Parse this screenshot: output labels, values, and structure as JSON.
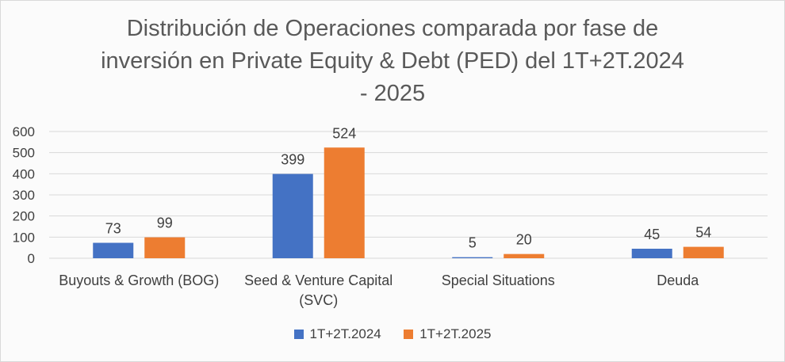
{
  "chart_data": {
    "type": "bar",
    "title": "Distribución de Operaciones comparada por fase de inversión en Private Equity & Debt (PED) del 1T+2T.2024 - 2025",
    "categories": [
      "Buyouts & Growth (BOG)",
      "Seed & Venture Capital (SVC)",
      "Special Situations",
      "Deuda"
    ],
    "series": [
      {
        "name": "1T+2T.2024",
        "values": [
          73,
          399,
          5,
          45
        ],
        "color": "#4472C4"
      },
      {
        "name": "1T+2T.2025",
        "values": [
          99,
          524,
          20,
          54
        ],
        "color": "#ED7D31"
      }
    ],
    "ylim": [
      0,
      600
    ],
    "yticks": [
      0,
      100,
      200,
      300,
      400,
      500,
      600
    ],
    "grid": true,
    "legend_position": "bottom"
  }
}
